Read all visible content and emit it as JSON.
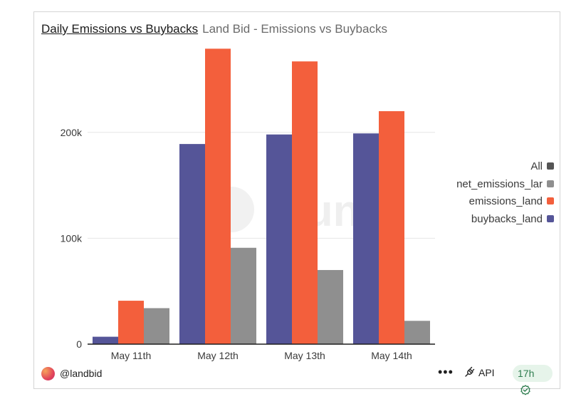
{
  "header": {
    "title": "Daily Emissions vs Buybacks",
    "subtitle": "Land Bid - Emissions vs Buybacks"
  },
  "legend": {
    "items": [
      {
        "label": "All",
        "color": "#555555"
      },
      {
        "label": "net_emissions_lar",
        "color": "#8f8f8f"
      },
      {
        "label": "emissions_land",
        "color": "#f35f3c"
      },
      {
        "label": "buybacks_land",
        "color": "#555598"
      }
    ]
  },
  "watermark": "Dune",
  "footer": {
    "handle": "@landbid",
    "menu": "•••",
    "api_label": "API",
    "freshness": "17h"
  },
  "chart_data": {
    "type": "bar",
    "categories": [
      "May 11th",
      "May 12th",
      "May 13th",
      "May 14th"
    ],
    "series": [
      {
        "name": "buybacks_land",
        "color": "#555598",
        "values": [
          7000,
          189000,
          198000,
          199000
        ]
      },
      {
        "name": "emissions_land",
        "color": "#f35f3c",
        "values": [
          41000,
          279000,
          267000,
          220000
        ]
      },
      {
        "name": "net_emissions_land",
        "color": "#8f8f8f",
        "values": [
          34000,
          91000,
          70000,
          22000
        ]
      }
    ],
    "y_ticks": [
      {
        "value": 0,
        "label": "0"
      },
      {
        "value": 100000,
        "label": "100k"
      },
      {
        "value": 200000,
        "label": "200k"
      }
    ],
    "ylim": [
      0,
      290000
    ],
    "grid": true,
    "legend_position": "right"
  }
}
